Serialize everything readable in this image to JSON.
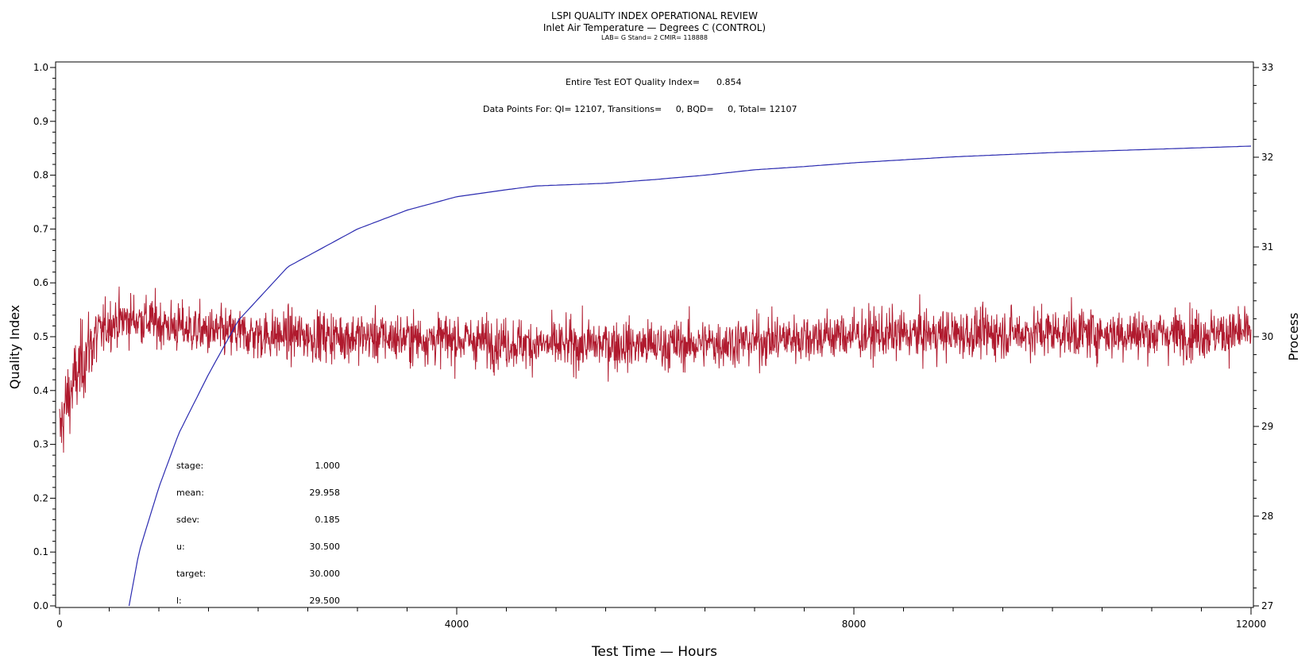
{
  "chart_data": {
    "type": "line",
    "title": "LSPI QUALITY INDEX OPERATIONAL REVIEW",
    "subtitle": "Inlet Air Temperature — Degrees C (CONTROL)",
    "subtitle2": "LAB= G Stand= 2 CMIR= 118888",
    "xlabel": "Test Time — Hours",
    "ylabel_left": "Quality Index",
    "ylabel_right": "Process",
    "xlim": [
      0,
      12000
    ],
    "ylim_left": [
      0.0,
      1.0
    ],
    "ylim_right": [
      27,
      33
    ],
    "x_ticks": [
      "0",
      "4000",
      "8000",
      "12000"
    ],
    "y_ticks_left": [
      "0.0",
      "0.1",
      "0.2",
      "0.3",
      "0.4",
      "0.5",
      "0.6",
      "0.7",
      "0.8",
      "0.9",
      "1.0"
    ],
    "y_ticks_right": [
      "27",
      "28",
      "29",
      "30",
      "31",
      "32",
      "33"
    ],
    "annotations": {
      "eot_label": "Entire Test EOT Quality Index=",
      "eot_value": "0.854",
      "points_line": "Data Points For: QI= 12107, Transitions=     0, BQD=     0, Total= 12107"
    },
    "stats": [
      {
        "label": "stage:",
        "value": "1.000"
      },
      {
        "label": "mean:",
        "value": "29.958"
      },
      {
        "label": "sdev:",
        "value": "0.185"
      },
      {
        "label": "u:",
        "value": "30.500"
      },
      {
        "label": "target:",
        "value": "30.000"
      },
      {
        "label": "l:",
        "value": "29.500"
      }
    ],
    "series": [
      {
        "axis": "left",
        "color": "#2b2bb0",
        "x": [
          700,
          800,
          1000,
          1200,
          1500,
          1800,
          2000,
          2300,
          2700,
          3000,
          3500,
          4000,
          4500,
          4800,
          5500,
          6000,
          6500,
          7000,
          7500,
          8000,
          9000,
          10000,
          11000,
          12000
        ],
        "values": [
          0.0,
          0.1,
          0.22,
          0.32,
          0.43,
          0.53,
          0.57,
          0.63,
          0.67,
          0.7,
          0.735,
          0.76,
          0.773,
          0.78,
          0.785,
          0.792,
          0.8,
          0.81,
          0.816,
          0.823,
          0.834,
          0.842,
          0.848,
          0.854
        ]
      },
      {
        "axis": "right",
        "color": "#b01a2e",
        "noise_sdev": 0.185,
        "x": [
          0,
          50,
          150,
          300,
          500,
          700,
          900,
          1100,
          1500,
          2000,
          3000,
          4000,
          5000,
          5500,
          6000,
          7000,
          7500,
          8000,
          9000,
          10000,
          11000,
          12000
        ],
        "values": [
          28.9,
          29.2,
          29.5,
          29.9,
          30.15,
          30.2,
          30.18,
          30.12,
          30.05,
          30.02,
          30.0,
          29.97,
          29.9,
          29.92,
          29.9,
          29.95,
          30.0,
          30.02,
          30.03,
          30.05,
          30.03,
          30.04
        ]
      }
    ]
  }
}
